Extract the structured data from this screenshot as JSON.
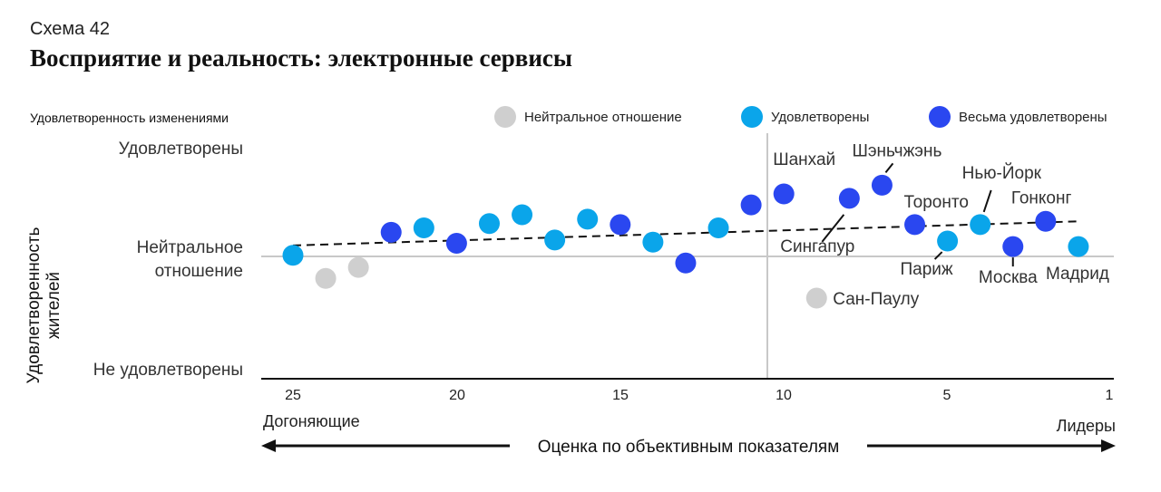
{
  "header": {
    "kicker": "Схема 42",
    "title": "Восприятие и реальность: электронные сервисы"
  },
  "legend": {
    "title": "Удовлетворенность изменениями",
    "items": [
      {
        "label": "Нейтральное отношение",
        "color": "#cfcfcf"
      },
      {
        "label": "Удовлетворены",
        "color": "#0aa5ea"
      },
      {
        "label": "Весьма удовлетворены",
        "color": "#2a47f0"
      }
    ]
  },
  "chart_data": {
    "type": "scatter",
    "xlabel": "Оценка по объективным показателям",
    "ylabel": "Удовлетворенность жителей",
    "x_direction": "reversed",
    "x_ticks": [
      25,
      20,
      15,
      10,
      5,
      1
    ],
    "x_end_labels": {
      "left": "Догоняющие",
      "right": "Лидеры"
    },
    "y_labels": [
      "Удовлетворены",
      "Нейтральное отношение",
      "Не удовлетворены"
    ],
    "y_ticks": [
      {
        "value": 1,
        "lines": [
          "Удовлетворены"
        ]
      },
      {
        "value": 0,
        "lines": [
          "Нейтральное",
          "отношение"
        ]
      },
      {
        "value": -1,
        "lines": [
          "Не удовлетворены"
        ]
      }
    ],
    "ylim": [
      -1.1,
      1.1
    ],
    "trendline": {
      "x1": 25,
      "y1": 0.1,
      "x2": 1,
      "y2": 0.32
    },
    "points": [
      {
        "x": 25,
        "y": 0.01,
        "cat": 1,
        "label": ""
      },
      {
        "x": 24,
        "y": -0.2,
        "cat": 0,
        "label": ""
      },
      {
        "x": 23,
        "y": -0.1,
        "cat": 0,
        "label": ""
      },
      {
        "x": 22,
        "y": 0.22,
        "cat": 2,
        "label": ""
      },
      {
        "x": 21,
        "y": 0.26,
        "cat": 1,
        "label": ""
      },
      {
        "x": 20,
        "y": 0.12,
        "cat": 2,
        "label": ""
      },
      {
        "x": 19,
        "y": 0.3,
        "cat": 1,
        "label": ""
      },
      {
        "x": 18,
        "y": 0.38,
        "cat": 1,
        "label": ""
      },
      {
        "x": 17,
        "y": 0.15,
        "cat": 1,
        "label": ""
      },
      {
        "x": 16,
        "y": 0.34,
        "cat": 1,
        "label": ""
      },
      {
        "x": 15,
        "y": 0.29,
        "cat": 2,
        "label": ""
      },
      {
        "x": 14,
        "y": 0.13,
        "cat": 1,
        "label": ""
      },
      {
        "x": 13,
        "y": -0.06,
        "cat": 2,
        "label": ""
      },
      {
        "x": 12,
        "y": 0.26,
        "cat": 1,
        "label": ""
      },
      {
        "x": 11,
        "y": 0.47,
        "cat": 2,
        "label": ""
      },
      {
        "x": 10,
        "y": 0.57,
        "cat": 2,
        "label": "Шанхай"
      },
      {
        "x": 9,
        "y": -0.38,
        "cat": 0,
        "label": "Сан-Паулу"
      },
      {
        "x": 8,
        "y": 0.53,
        "cat": 2,
        "label": "Сингапур"
      },
      {
        "x": 7,
        "y": 0.65,
        "cat": 2,
        "label": "Шэньчжэнь"
      },
      {
        "x": 6,
        "y": 0.29,
        "cat": 2,
        "label": "Торонто"
      },
      {
        "x": 5,
        "y": 0.14,
        "cat": 1,
        "label": "Париж"
      },
      {
        "x": 4,
        "y": 0.29,
        "cat": 1,
        "label": "Нью-Йорк"
      },
      {
        "x": 3,
        "y": 0.09,
        "cat": 2,
        "label": "Москва"
      },
      {
        "x": 2,
        "y": 0.32,
        "cat": 2,
        "label": "Гонконг"
      },
      {
        "x": 1,
        "y": 0.09,
        "cat": 1,
        "label": "Мадрид"
      }
    ],
    "grid": false,
    "legend_position": "top-right"
  }
}
